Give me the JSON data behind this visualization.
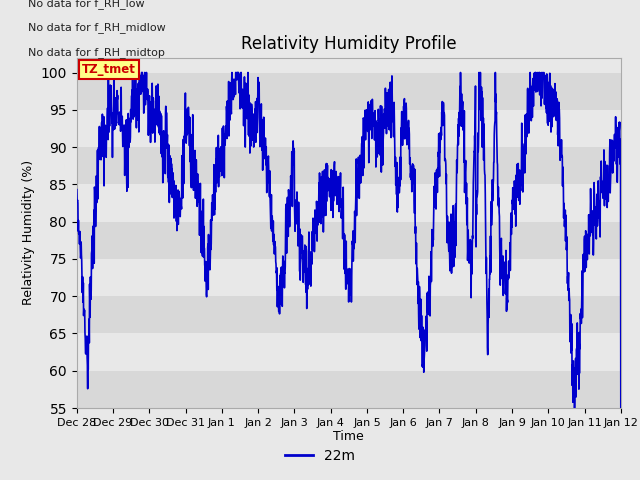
{
  "title": "Relativity Humidity Profile",
  "ylabel": "Relativity Humidity (%)",
  "xlabel": "Time",
  "legend_label": "22m",
  "line_color": "#0000CC",
  "line_width": 1.2,
  "ylim": [
    55,
    102
  ],
  "yticks": [
    55,
    60,
    65,
    70,
    75,
    80,
    85,
    90,
    95,
    100
  ],
  "bg_color": "#E8E8E8",
  "plot_bg_color": "#E8E8E8",
  "stripe_dark": "#D8D8D8",
  "stripe_light": "#E8E8E8",
  "annotations": [
    "No data for f_RH_low",
    "No data for f_RH_midlow",
    "No data for f_RH_midtop"
  ],
  "annotation_color": "#222222",
  "tz_label": "TZ_tmet",
  "tz_color": "#CC0000",
  "tz_bg": "#FFFF88",
  "xticklabels": [
    "Dec 28",
    "Dec 29",
    "Dec 30",
    "Dec 31",
    "Jan 1",
    "Jan 2",
    "Jan 3",
    "Jan 4",
    "Jan 5",
    "Jan 6",
    "Jan 7",
    "Jan 8",
    "Jan 9",
    "Jan 10",
    "Jan 11",
    "Jan 12"
  ],
  "num_points": 2000
}
